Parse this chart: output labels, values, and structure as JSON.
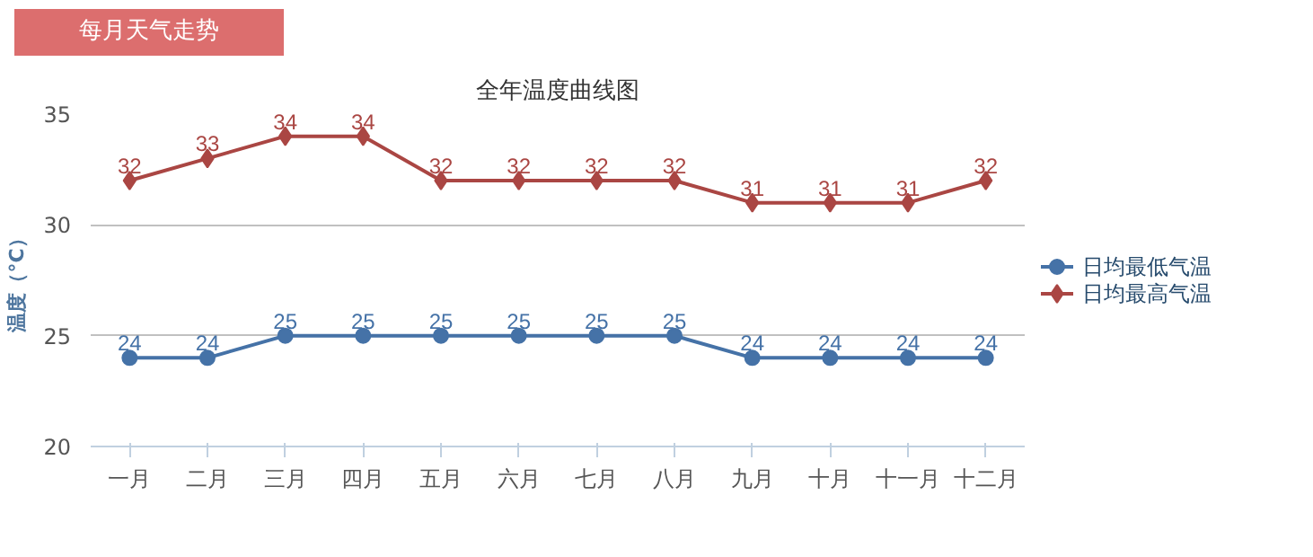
{
  "chart_data": {
    "type": "line",
    "title": "全年温度曲线图",
    "ylabel": "温度（°C）",
    "annotations": [
      "每月天气走势"
    ],
    "categories": [
      "一月",
      "二月",
      "三月",
      "四月",
      "五月",
      "六月",
      "七月",
      "八月",
      "九月",
      "十月",
      "十一月",
      "十二月"
    ],
    "series": [
      {
        "name": "日均最低气温",
        "color": "#4572a7",
        "marker": "circle",
        "values": [
          24,
          24,
          25,
          25,
          25,
          25,
          25,
          25,
          24,
          24,
          24,
          24
        ]
      },
      {
        "name": "日均最高气温",
        "color": "#aa4643",
        "marker": "diamond",
        "values": [
          32,
          33,
          34,
          34,
          32,
          32,
          32,
          32,
          31,
          31,
          31,
          32
        ]
      }
    ],
    "ylim": [
      20,
      35
    ],
    "yticks": [
      20,
      25,
      30,
      35
    ],
    "grid": "y",
    "legend": "right",
    "data_labels": true
  }
}
